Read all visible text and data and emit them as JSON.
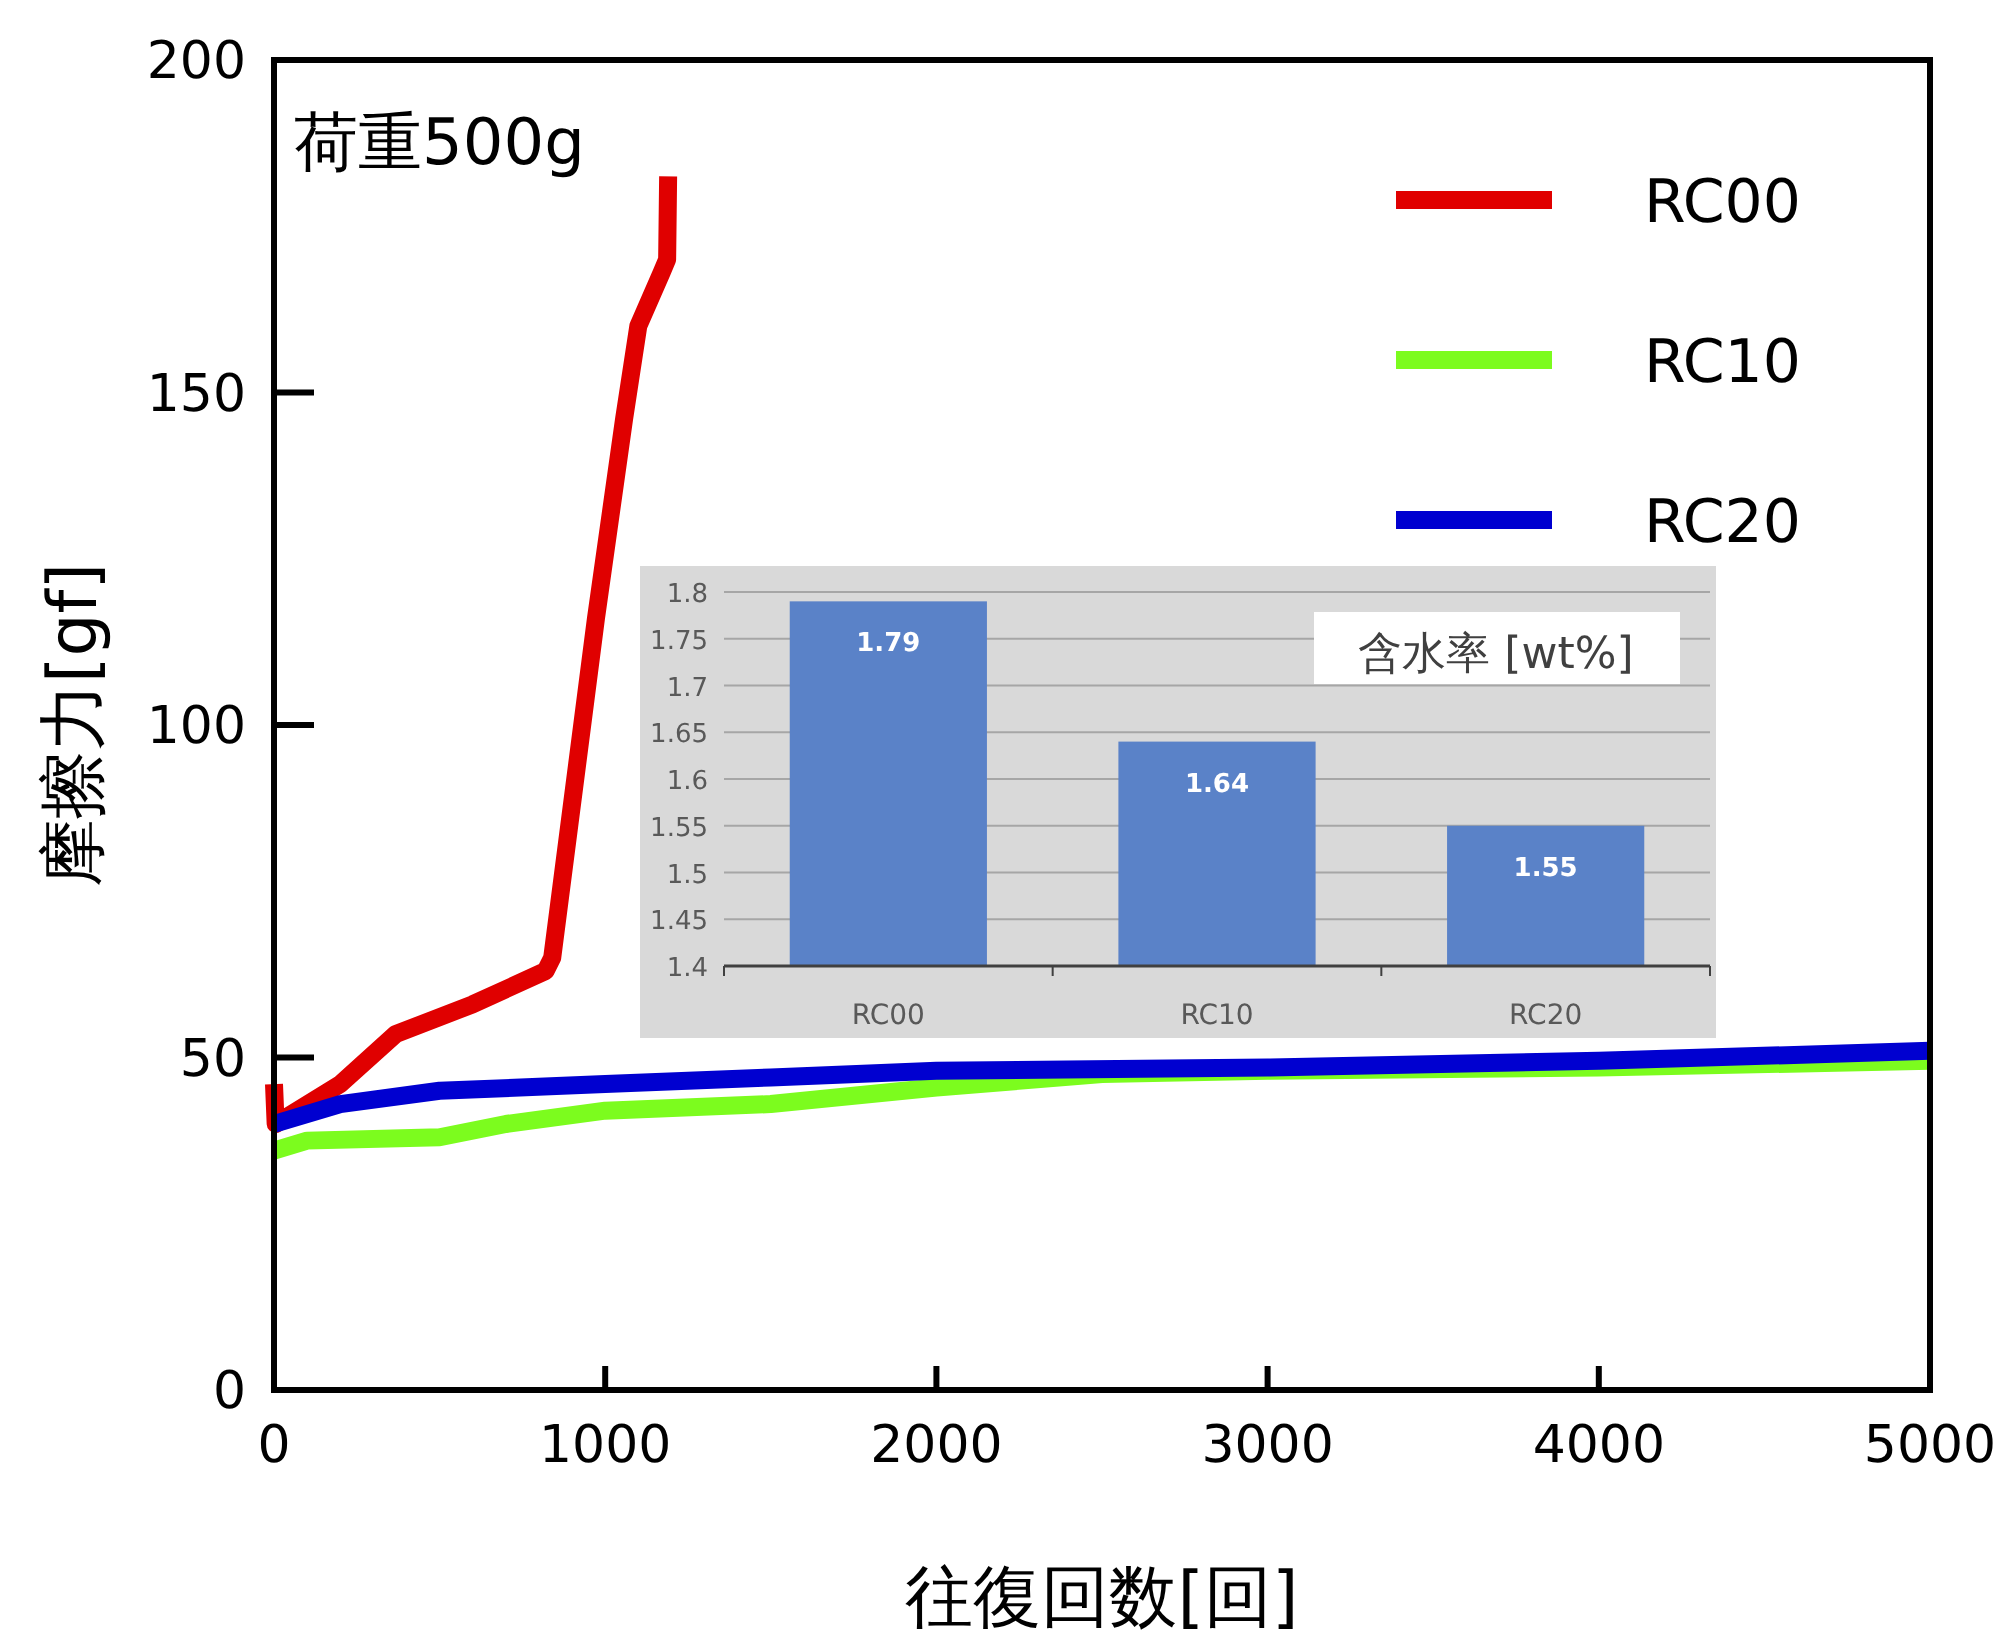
{
  "chart_data": [
    {
      "type": "line",
      "xlabel": "往復回数[回]",
      "ylabel": "摩擦力[gf]",
      "annotations": [
        "荷重500g"
      ],
      "xlim": [
        0,
        5000
      ],
      "ylim": [
        0,
        200
      ],
      "xticks": [
        0,
        1000,
        2000,
        3000,
        4000,
        5000
      ],
      "yticks": [
        0,
        50,
        100,
        150,
        200
      ],
      "legend": "top right",
      "grid": false,
      "line_style": "solid",
      "marker": "none",
      "series": [
        {
          "name": "RC00",
          "color": "#e00000",
          "x": [
            0,
            5,
            200,
            367,
            600,
            820,
            840,
            972,
            1057,
            1100,
            1170,
            1187,
            1190
          ],
          "values": [
            46,
            40,
            46,
            53.5,
            58,
            63,
            65,
            116,
            146,
            160,
            168,
            170,
            182.5
          ]
        },
        {
          "name": "RC10",
          "color": "#7cfc1e",
          "x": [
            0,
            100,
            500,
            700,
            1000,
            1500,
            2000,
            2500,
            3000,
            4000,
            5000
          ],
          "values": [
            36,
            37.5,
            38,
            40,
            42,
            43,
            45.5,
            47.5,
            48,
            48.5,
            49.5
          ]
        },
        {
          "name": "RC20",
          "color": "#0000d0",
          "x": [
            0,
            200,
            500,
            1000,
            1500,
            2000,
            3000,
            4000,
            5000
          ],
          "values": [
            40,
            43,
            45,
            46,
            47,
            48,
            48.5,
            49.5,
            51
          ]
        }
      ]
    },
    {
      "type": "bar",
      "title": "含水率 [wt%]",
      "categories": [
        "RC00",
        "RC10",
        "RC20"
      ],
      "values": [
        1.79,
        1.64,
        1.55
      ],
      "color": "#5a82c8",
      "ylim": [
        1.4,
        1.8
      ],
      "yticks": [
        1.4,
        1.45,
        1.5,
        1.55,
        1.6,
        1.65,
        1.7,
        1.75,
        1.8
      ],
      "grid": "y",
      "data_labels": true
    }
  ]
}
